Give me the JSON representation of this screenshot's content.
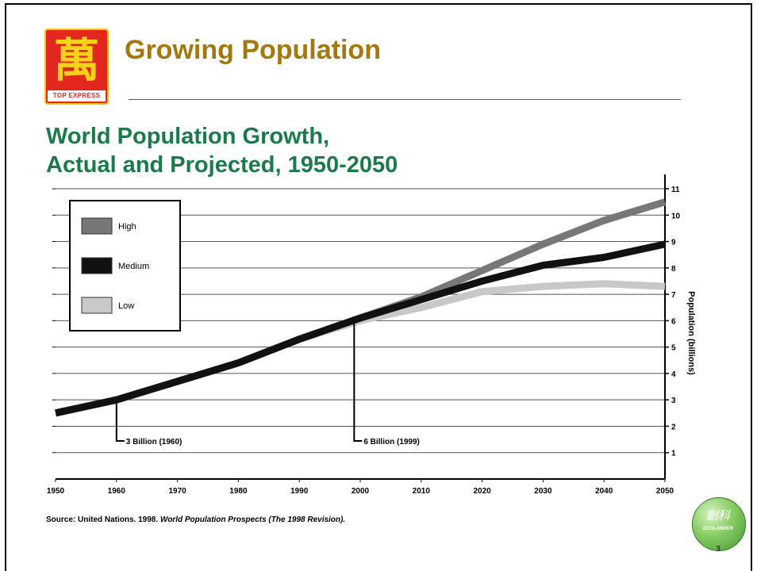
{
  "slide": {
    "title": "Growing Population",
    "logo_text": "TOP EXPRESS",
    "logo_char": "萬",
    "page_number": "3",
    "badge_text": "創科",
    "badge_sub": "ECOLANDER"
  },
  "colors": {
    "title": "#a5780e",
    "chart_title": "#1a7a4b",
    "rule": "#c0392b",
    "high": "#777777",
    "medium": "#111111",
    "low": "#c8c8c8"
  },
  "chart_data": {
    "type": "line",
    "title": "World Population Growth, Actual and Projected, 1950-2050",
    "title_lines": [
      "World Population Growth,",
      "Actual and Projected, 1950-2050"
    ],
    "ylabel": "Population (billions)",
    "xlabel": "",
    "xlim": [
      1950,
      2050
    ],
    "ylim": [
      0,
      11
    ],
    "x_ticks": [
      1950,
      1960,
      1970,
      1980,
      1990,
      2000,
      2010,
      2020,
      2030,
      2040,
      2050
    ],
    "y_ticks": [
      1,
      2,
      3,
      4,
      5,
      6,
      7,
      8,
      9,
      10,
      11
    ],
    "grid": true,
    "legend": "top-left",
    "series": [
      {
        "name": "High",
        "color": "#777777",
        "x": [
          1950,
          1960,
          1970,
          1980,
          1990,
          2000,
          2010,
          2020,
          2030,
          2040,
          2050
        ],
        "y": [
          2.5,
          3.0,
          3.7,
          4.4,
          5.3,
          6.1,
          6.9,
          7.9,
          8.9,
          9.8,
          10.5
        ]
      },
      {
        "name": "Medium",
        "color": "#111111",
        "x": [
          1950,
          1960,
          1970,
          1980,
          1990,
          2000,
          2010,
          2020,
          2030,
          2040,
          2050
        ],
        "y": [
          2.5,
          3.0,
          3.7,
          4.4,
          5.3,
          6.1,
          6.8,
          7.5,
          8.1,
          8.4,
          8.9
        ]
      },
      {
        "name": "Low",
        "color": "#c8c8c8",
        "x": [
          1950,
          1960,
          1970,
          1980,
          1990,
          2000,
          2010,
          2020,
          2030,
          2040,
          2050
        ],
        "y": [
          2.5,
          3.0,
          3.7,
          4.4,
          5.3,
          6.0,
          6.5,
          7.1,
          7.3,
          7.4,
          7.3
        ]
      }
    ],
    "annotations": [
      {
        "label": "3 Billion (1960)",
        "x": 1960,
        "y": 3.0
      },
      {
        "label": "6 Billion (1999)",
        "x": 1999,
        "y": 6.0
      }
    ],
    "source": {
      "prefix": "Source: United Nations. 1998. ",
      "italic": "World Population Prospects (The 1998 Revision)."
    }
  }
}
